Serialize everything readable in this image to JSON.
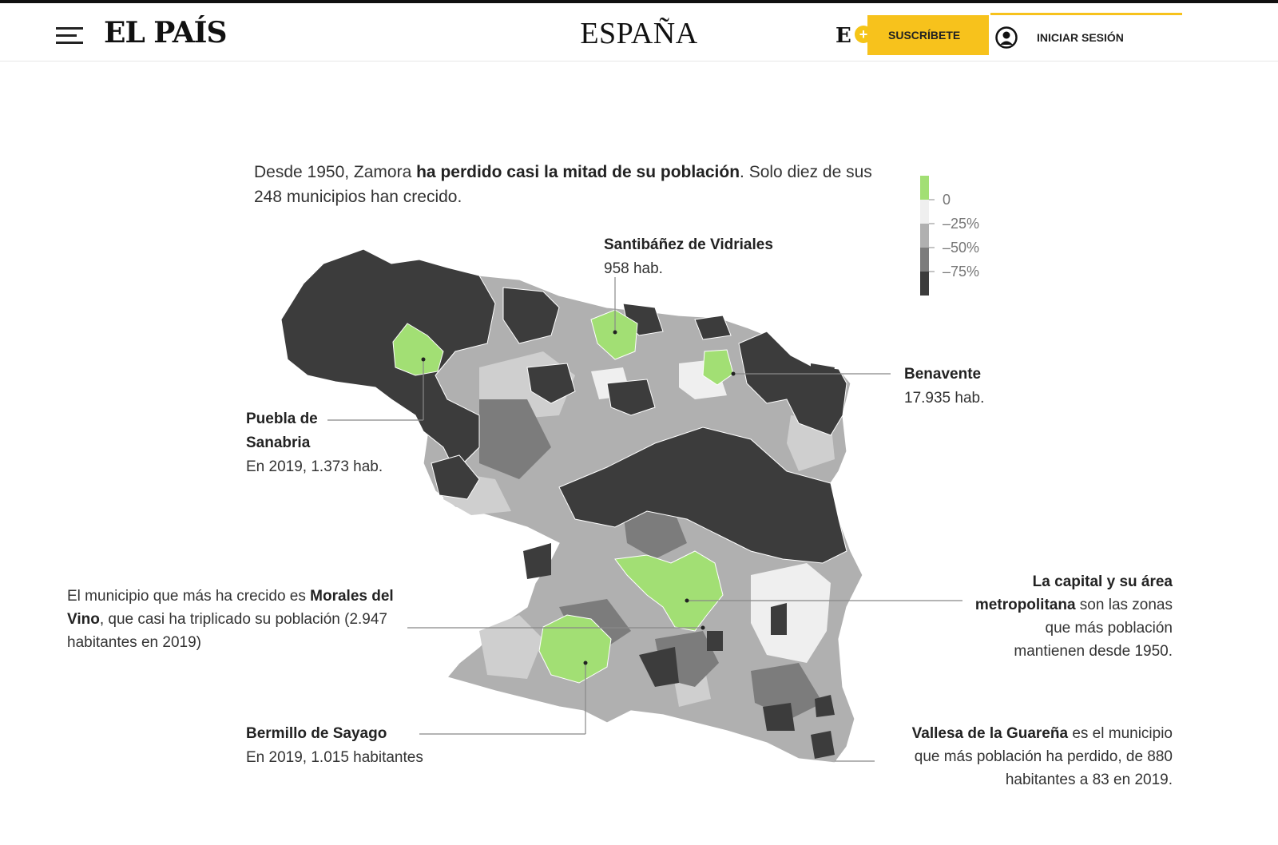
{
  "header": {
    "logo": "EL PAÍS",
    "section": "ESPAÑA",
    "badge_letter": "E",
    "subscribe_label": "SUSCRÍBETE",
    "login_label": "INICIAR SESIÓN"
  },
  "intro": {
    "part1": "Desde 1950, Zamora ",
    "bold": "ha perdido casi la mitad de su población",
    "part2": ". Solo diez de sus 248 municipios han crecido."
  },
  "legend": {
    "labels": [
      "0",
      "–25%",
      "–50%",
      "–75%"
    ],
    "colors": [
      "#a2df74",
      "#efefef",
      "#b0b0b0",
      "#7c7c7c",
      "#3c3c3c"
    ]
  },
  "annotations": {
    "santibanez": {
      "name": "Santibáñez de Vidriales",
      "detail": "958 hab."
    },
    "benavente": {
      "name": "Benavente",
      "detail": "17.935 hab."
    },
    "puebla": {
      "name_line1": "Puebla de",
      "name_line2": "Sanabria",
      "detail": "En 2019, 1.373 hab."
    },
    "morales": {
      "pre": "El municipio que más ha crecido es ",
      "bold": "Morales del Vino",
      "post": ", que casi ha triplicado su población (2.947 habitantes en 2019)"
    },
    "capital": {
      "bold": "La capital y su área metropolitana",
      "post": " son las zonas que más población mantienen desde 1950."
    },
    "bermillo": {
      "name": "Bermillo de Sayago",
      "detail": "En 2019, 1.015 habitantes"
    },
    "vallesa": {
      "bold": "Vallesa de la Guareña",
      "post": " es el municipio que más población ha perdido, de 880 habitantes a 83 en 2019."
    }
  },
  "colors": {
    "grew": "#a2df74",
    "loss_0_25": "#efefef",
    "loss_25_50": "#b0b0b0",
    "loss_50_75": "#7c7c7c",
    "loss_75_plus": "#3c3c3c",
    "accent": "#f7c21c"
  }
}
